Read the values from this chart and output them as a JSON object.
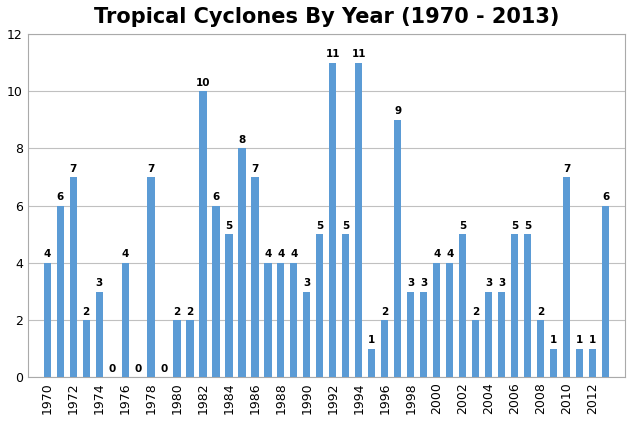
{
  "title": "Tropical Cyclones By Year (1970 - 2013)",
  "years": [
    1970,
    1971,
    1972,
    1973,
    1974,
    1975,
    1976,
    1977,
    1978,
    1979,
    1980,
    1981,
    1982,
    1983,
    1984,
    1985,
    1986,
    1987,
    1988,
    1989,
    1990,
    1991,
    1992,
    1993,
    1994,
    1995,
    1996,
    1997,
    1998,
    1999,
    2000,
    2001,
    2002,
    2003,
    2004,
    2005,
    2006,
    2007,
    2008,
    2009,
    2010,
    2011,
    2012,
    2013
  ],
  "values": [
    4,
    6,
    7,
    2,
    3,
    0,
    4,
    0,
    7,
    0,
    2,
    2,
    10,
    6,
    5,
    8,
    7,
    4,
    4,
    4,
    3,
    5,
    11,
    5,
    11,
    1,
    2,
    9,
    3,
    3,
    4,
    4,
    5,
    2,
    3,
    3,
    5,
    5,
    2,
    1,
    7,
    1,
    1,
    6
  ],
  "bar_color": "#5b9bd5",
  "ylim": [
    0,
    12
  ],
  "yticks": [
    0,
    2,
    4,
    6,
    8,
    10,
    12
  ],
  "xtick_years": [
    1970,
    1972,
    1974,
    1976,
    1978,
    1980,
    1982,
    1984,
    1986,
    1988,
    1990,
    1992,
    1994,
    1996,
    1998,
    2000,
    2002,
    2004,
    2006,
    2008,
    2010,
    2012
  ],
  "title_fontsize": 15,
  "label_fontsize": 7.5,
  "bar_width": 0.55,
  "grid_color": "#c0c0c0",
  "spine_color": "#aaaaaa"
}
